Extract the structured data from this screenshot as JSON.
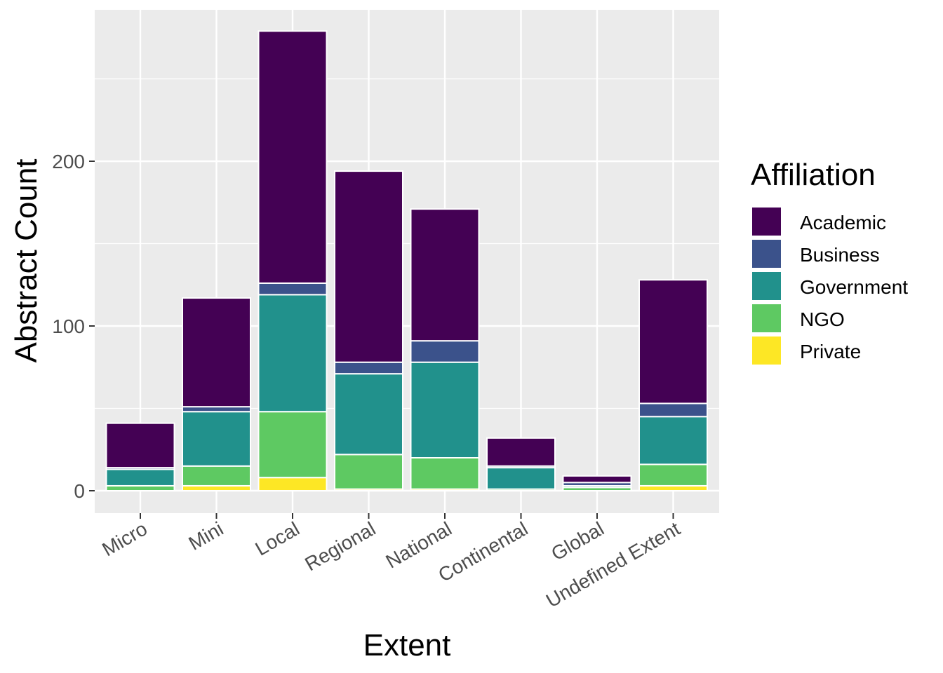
{
  "chart_data": {
    "type": "bar",
    "stacked": true,
    "categories": [
      "Micro",
      "Mini",
      "Local",
      "Regional",
      "National",
      "Continental",
      "Global",
      "Undefined Extent"
    ],
    "series": [
      {
        "name": "Private",
        "color": "#FDE725",
        "values": [
          0,
          3,
          8,
          1,
          1,
          0,
          0,
          3
        ]
      },
      {
        "name": "NGO",
        "color": "#5EC962",
        "values": [
          3,
          12,
          40,
          21,
          19,
          1,
          2,
          13
        ]
      },
      {
        "name": "Government",
        "color": "#21918C",
        "values": [
          10,
          33,
          71,
          49,
          58,
          13,
          1,
          29
        ]
      },
      {
        "name": "Business",
        "color": "#3B528B",
        "values": [
          1,
          3,
          7,
          7,
          13,
          1,
          2,
          8
        ]
      },
      {
        "name": "Academic",
        "color": "#440154",
        "values": [
          27,
          66,
          153,
          116,
          80,
          17,
          4,
          75
        ]
      }
    ],
    "xlabel": "Extent",
    "ylabel": "Abstract Count",
    "ylim": [
      -13.5,
      285
    ],
    "yticks": [
      0,
      100,
      200
    ],
    "grid": true,
    "legend": {
      "title": "Affiliation",
      "position": "right",
      "items": [
        "Academic",
        "Business",
        "Government",
        "NGO",
        "Private"
      ]
    },
    "panel_background": "#EBEBEB",
    "grid_color": "#FFFFFF"
  }
}
